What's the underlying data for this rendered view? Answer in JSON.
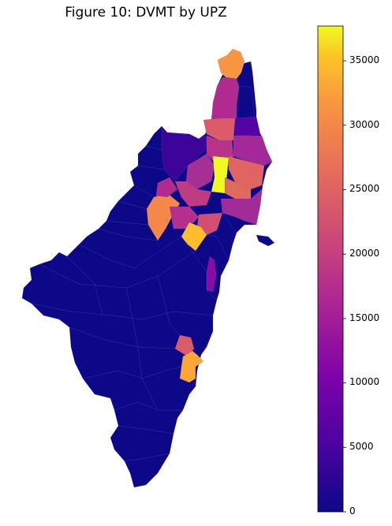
{
  "figure": {
    "title": "Figure 10: DVMT by UPZ"
  },
  "colorbar": {
    "colormap": "plasma",
    "min": 0,
    "max": 37700,
    "ticks": [
      "0",
      "5000",
      "10000",
      "15000",
      "20000",
      "25000",
      "30000",
      "35000"
    ]
  },
  "colors": {
    "low": "#0d0887",
    "purple": "#5402a3",
    "violet": "#8b0aa5",
    "magenta": "#b93289",
    "pink": "#db5c68",
    "orange": "#f48849",
    "light_orange": "#febd2a",
    "yellow": "#f0f921"
  }
}
